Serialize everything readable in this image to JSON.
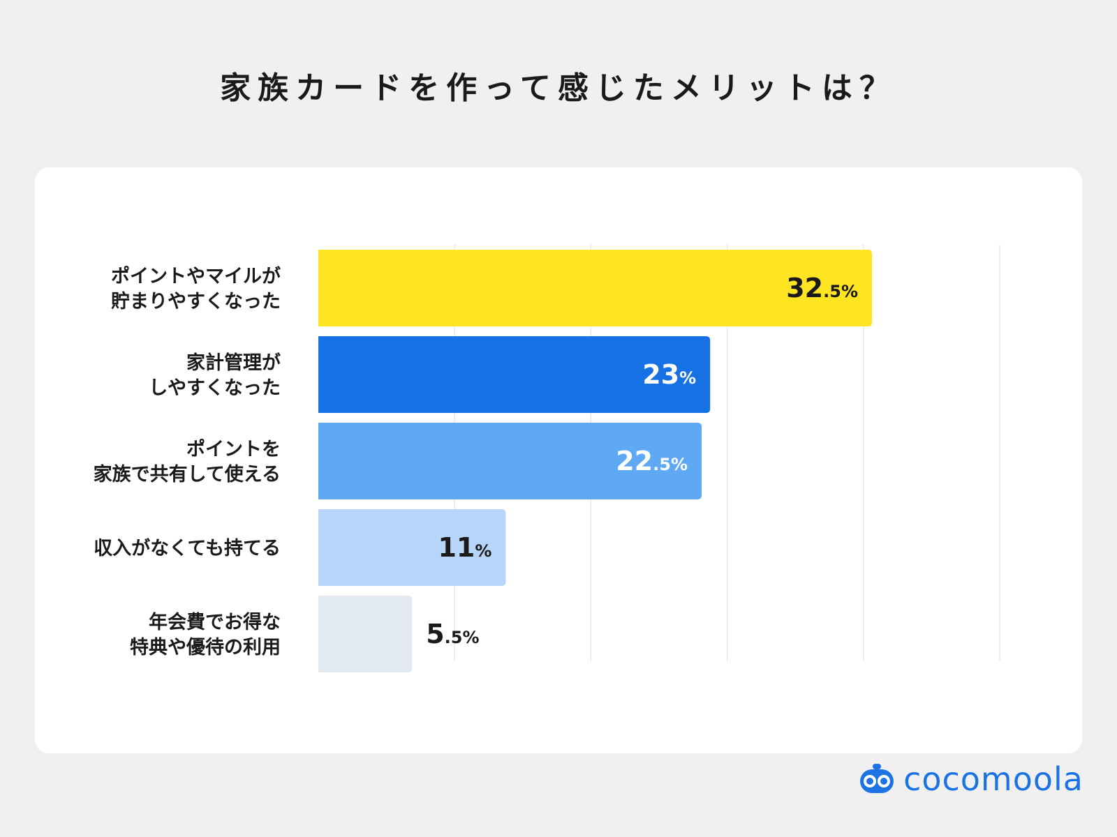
{
  "title": "家族カードを作って感じたメリットは？",
  "brand": {
    "name": "cocomoola",
    "color": "#1b73e3",
    "icon": "robot-face-icon"
  },
  "chart_data": {
    "type": "bar",
    "orientation": "horizontal",
    "xlim": [
      0,
      40
    ],
    "grid": true,
    "categories": [
      [
        "ポイントやマイルが",
        "貯まりやすくなった"
      ],
      [
        "家計管理が",
        "しやすくなった"
      ],
      [
        "ポイントを",
        "家族で共有して使える"
      ],
      [
        "収入がなくても持てる"
      ],
      [
        "年会費でお得な",
        "特典や優待の利用"
      ]
    ],
    "values": [
      32.5,
      23,
      22.5,
      11,
      5.5
    ],
    "value_labels": [
      {
        "main": "32",
        "decimal": ".5",
        "unit": "%"
      },
      {
        "main": "23",
        "decimal": "",
        "unit": "%"
      },
      {
        "main": "22",
        "decimal": ".5",
        "unit": "%"
      },
      {
        "main": "11",
        "decimal": "",
        "unit": "%"
      },
      {
        "main": "5",
        "decimal": ".5",
        "unit": "%"
      }
    ],
    "colors": [
      "#ffe422",
      "#1672e4",
      "#5ea8f4",
      "#b6d5f8",
      "#e3e9f0"
    ],
    "label_colors": [
      "#1a1a1a",
      "#ffffff",
      "#ffffff",
      "#1a1a1a",
      "#1a1a1a"
    ]
  }
}
